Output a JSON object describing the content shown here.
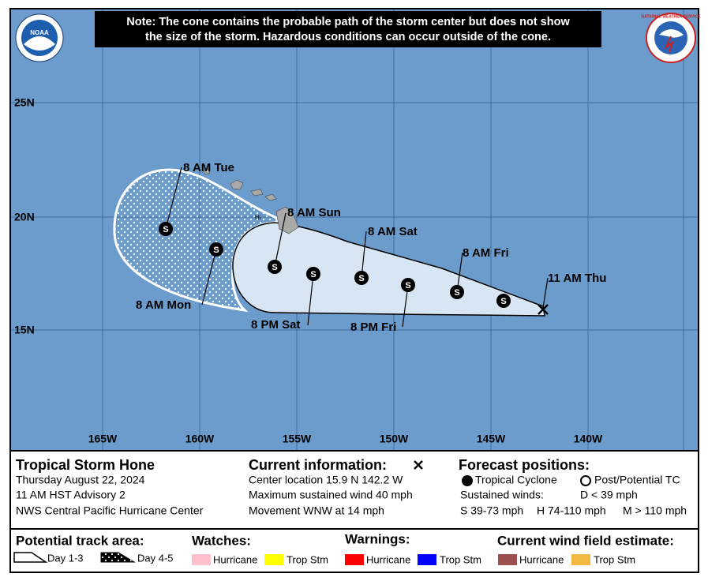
{
  "note": [
    "Note: The cone contains the probable path of the storm center but does not show",
    "the size of the storm. Hazardous conditions can occur outside of the cone."
  ],
  "logos": {
    "noaa": "NOAA",
    "nws": "NATIONAL WEATHER SERVICE"
  },
  "map": {
    "lat_labels": [
      "25N",
      "20N",
      "15N"
    ],
    "lon_labels": [
      "165W",
      "160W",
      "155W",
      "150W",
      "145W",
      "140W"
    ],
    "island_label": "HI",
    "storm_symbol": "S",
    "positions": [
      "11 AM Thu",
      "8 AM Fri",
      "8 PM Fri",
      "8 AM Sat",
      "8 PM Sat",
      "8 AM Sun",
      "8 AM Mon",
      "8 AM Tue"
    ]
  },
  "info": {
    "storm": {
      "name": "Tropical Storm Hone",
      "lines": [
        "Thursday August 22, 2024",
        "11 AM HST Advisory 2",
        "NWS Central Pacific Hurricane Center"
      ]
    },
    "current": {
      "title": "Current information:",
      "lines": [
        "Center location 15.9 N 142.2 W",
        "Maximum sustained wind 40 mph",
        "Movement WNW at 14 mph"
      ]
    },
    "forecast": {
      "title": "Forecast positions:",
      "tc": "Tropical Cyclone",
      "ptc": "Post/Potential TC",
      "sustained": "Sustained winds:",
      "d": "D < 39 mph",
      "s": "S 39-73 mph",
      "h": "H 74-110 mph",
      "m": "M > 110 mph"
    }
  },
  "legend": {
    "track": {
      "title": "Potential track area:",
      "day13": "Day 1-3",
      "day45": "Day 4-5"
    },
    "watches": {
      "title": "Watches:",
      "hurricane": "Hurricane",
      "trop": "Trop Stm"
    },
    "warnings": {
      "title": "Warnings:",
      "hurricane": "Hurricane",
      "trop": "Trop Stm"
    },
    "wind": {
      "title": "Current wind field estimate:",
      "hurricane": "Hurricane",
      "trop": "Trop Stm"
    }
  }
}
